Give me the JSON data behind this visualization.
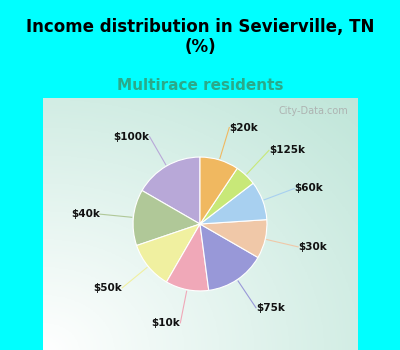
{
  "title": "Income distribution in Sevierville, TN\n(%)",
  "subtitle": "Multirace residents",
  "subtitle_color": "#2aaa8a",
  "title_fontsize": 12,
  "subtitle_fontsize": 11,
  "top_bg": "#00ffff",
  "labels": [
    "$100k",
    "$40k",
    "$50k",
    "$10k",
    "$75k",
    "$30k",
    "$60k",
    "$125k",
    "$20k"
  ],
  "values": [
    16,
    13,
    11,
    10,
    14,
    9,
    9,
    5,
    9
  ],
  "colors": [
    "#b8a8d8",
    "#b0c898",
    "#f0f0a0",
    "#f0a8b8",
    "#9898d8",
    "#f0c8a8",
    "#a8d0f0",
    "#c8e878",
    "#f0b860"
  ],
  "line_colors": [
    "#b8a8d8",
    "#b0c898",
    "#f0f0a0",
    "#f0a8b8",
    "#9898d8",
    "#f0c8a8",
    "#a8d0f0",
    "#c8e878",
    "#f0b860"
  ],
  "watermark": "City-Data.com",
  "figsize": [
    4.0,
    3.5
  ],
  "dpi": 100,
  "startangle": 90
}
